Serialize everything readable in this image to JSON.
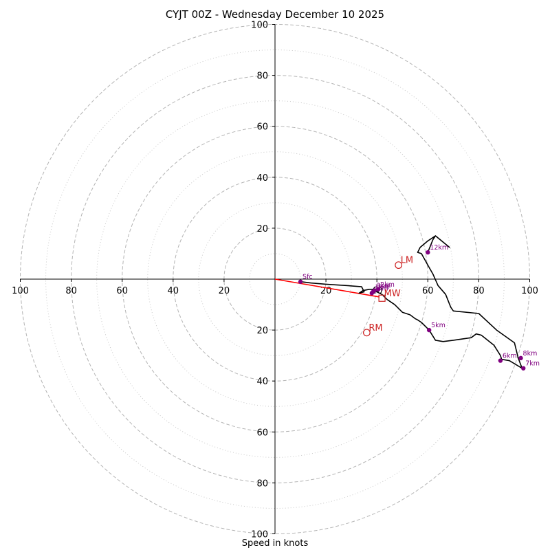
{
  "chart_data": {
    "type": "line",
    "title": "CYJT 00Z - Wednesday December 10 2025",
    "xlabel": "Speed in knots",
    "xlim": [
      -100,
      100
    ],
    "ylim": [
      -100,
      100
    ],
    "rings_major": [
      20,
      40,
      60,
      80,
      100
    ],
    "rings_minor": [
      10,
      30,
      50,
      70,
      90
    ],
    "x_tick_labels": [
      "100",
      "80",
      "60",
      "40",
      "20",
      "20",
      "40",
      "60",
      "80",
      "100"
    ],
    "x_tick_values": [
      -100,
      -80,
      -60,
      -40,
      -20,
      20,
      40,
      60,
      80,
      100
    ],
    "y_tick_labels": [
      "100",
      "80",
      "60",
      "40",
      "20",
      "20",
      "40",
      "60",
      "80",
      "100"
    ],
    "y_tick_values": [
      100,
      80,
      60,
      40,
      20,
      -20,
      -40,
      -60,
      -80,
      -100
    ],
    "hodograph": {
      "u": [
        10,
        14,
        20,
        28,
        34,
        35,
        33,
        34.5,
        37,
        39,
        40,
        41,
        42,
        44,
        47,
        50,
        53,
        55,
        56,
        57.5,
        60.5,
        63,
        66,
        70,
        77,
        79,
        81,
        86,
        88.5,
        89,
        92,
        97,
        95.5,
        94,
        87,
        80,
        70,
        69,
        67,
        64,
        62,
        60,
        57.5,
        56,
        57,
        60,
        63,
        68.5,
        63,
        62,
        60
      ],
      "v": [
        -1,
        -1.5,
        -2,
        -2.5,
        -3,
        -5,
        -5.5,
        -4.5,
        -4,
        -4,
        -5,
        -5.5,
        -6,
        -8,
        -10,
        -13,
        -14,
        -15.5,
        -16,
        -17,
        -20,
        -24,
        -24.5,
        -24,
        -23,
        -21.5,
        -22,
        -26,
        -30,
        -31.5,
        -32,
        -35,
        -31,
        -25,
        -20,
        -13.5,
        -12.5,
        -11,
        -6,
        -2.5,
        2,
        5.5,
        10,
        10.5,
        12.5,
        15,
        17,
        12.5,
        17,
        15.5,
        10.5
      ],
      "color": "#000000"
    },
    "height_markers": [
      {
        "label": "Sfc",
        "u": 10,
        "v": -1
      },
      {
        "label": "1km",
        "u": 38.5,
        "v": -5
      },
      {
        "label": "2km",
        "u": 40.5,
        "v": -4
      },
      {
        "label": "3km",
        "u": 39,
        "v": -4.5
      },
      {
        "label": "4km",
        "u": 38,
        "v": -5.5
      },
      {
        "label": "5km",
        "u": 60.5,
        "v": -20
      },
      {
        "label": "6km",
        "u": 88.5,
        "v": -32
      },
      {
        "label": "7km",
        "u": 97.5,
        "v": -35
      },
      {
        "label": "8km",
        "u": 96.5,
        "v": -31
      },
      {
        "label": "12km",
        "u": 60,
        "v": 10.5
      }
    ],
    "marker_color": "#800080",
    "shear_vector": {
      "u0": 0,
      "v0": 0,
      "u1": 41,
      "v1": -7,
      "color": "#ff0000"
    },
    "storm_motion": [
      {
        "label": "LM",
        "u": 48.5,
        "v": 5.5,
        "shape": "circle"
      },
      {
        "label": "RM",
        "u": 36,
        "v": -21,
        "shape": "circle"
      },
      {
        "label": "MW",
        "u": 42,
        "v": -7.5,
        "shape": "square"
      }
    ],
    "storm_motion_color": "#cc2222"
  }
}
